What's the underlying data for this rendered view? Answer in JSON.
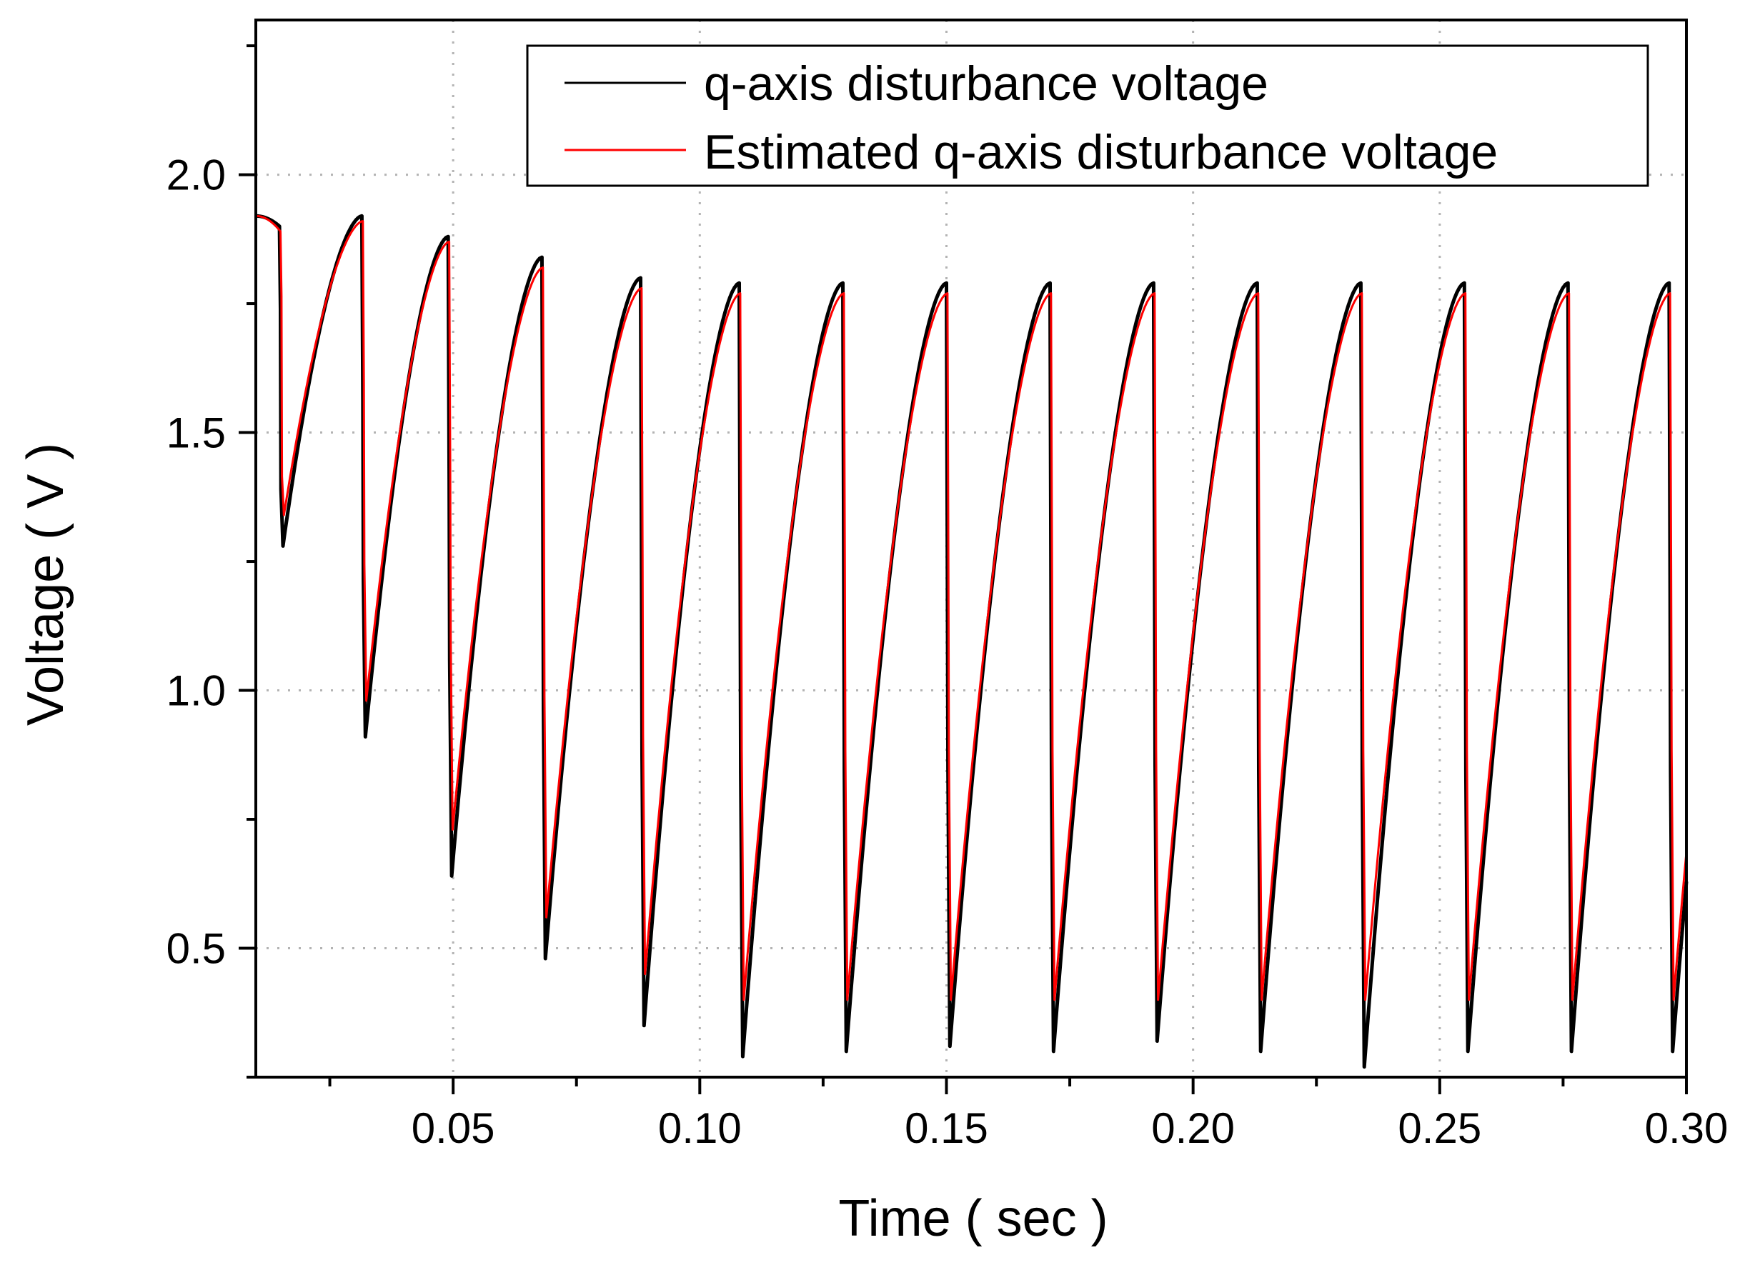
{
  "chart_data": {
    "type": "line",
    "title": "",
    "xlabel": "Time ( sec )",
    "ylabel": "Voltage ( V )",
    "xlim": [
      0.01,
      0.3
    ],
    "ylim": [
      0.25,
      2.3
    ],
    "x_ticks": [
      0.05,
      0.1,
      0.15,
      0.2,
      0.25,
      0.3
    ],
    "x_tick_labels": [
      "0.05",
      "0.10",
      "0.15",
      "0.20",
      "0.25",
      "0.30"
    ],
    "x_minor_ticks": [
      0.025,
      0.075,
      0.125,
      0.175,
      0.225,
      0.275
    ],
    "y_ticks": [
      0.5,
      1.0,
      1.5,
      2.0
    ],
    "y_tick_labels": [
      "0.5",
      "1.0",
      "1.5",
      "2.0"
    ],
    "y_minor_ticks": [
      0.25,
      0.75,
      1.25,
      1.75,
      2.25
    ],
    "grid": true,
    "legend_position": "top-right",
    "series": [
      {
        "name": "q-axis disturbance voltage",
        "color": "#000000",
        "x_start": 0.01,
        "initial_value": 1.92,
        "cycles": [
          {
            "drop_time": 0.0148,
            "peak": 1.9,
            "min": 1.28
          },
          {
            "drop_time": 0.0315,
            "peak": 1.92,
            "min": 0.91
          },
          {
            "drop_time": 0.049,
            "peak": 1.88,
            "min": 0.64
          },
          {
            "drop_time": 0.068,
            "peak": 1.84,
            "min": 0.48
          },
          {
            "drop_time": 0.088,
            "peak": 1.8,
            "min": 0.35
          },
          {
            "drop_time": 0.108,
            "peak": 1.79,
            "min": 0.29
          },
          {
            "drop_time": 0.129,
            "peak": 1.79,
            "min": 0.3
          },
          {
            "drop_time": 0.15,
            "peak": 1.79,
            "min": 0.31
          },
          {
            "drop_time": 0.171,
            "peak": 1.79,
            "min": 0.3
          },
          {
            "drop_time": 0.192,
            "peak": 1.79,
            "min": 0.32
          },
          {
            "drop_time": 0.213,
            "peak": 1.79,
            "min": 0.3
          },
          {
            "drop_time": 0.234,
            "peak": 1.79,
            "min": 0.27
          },
          {
            "drop_time": 0.255,
            "peak": 1.79,
            "min": 0.3
          },
          {
            "drop_time": 0.276,
            "peak": 1.79,
            "min": 0.3
          },
          {
            "drop_time": 0.2965,
            "peak": 1.79,
            "min": 0.3
          }
        ]
      },
      {
        "name": "Estimated q-axis disturbance voltage",
        "color": "#ff0000",
        "x_start": 0.01,
        "initial_value": 1.92,
        "cycles": [
          {
            "drop_time": 0.015,
            "peak": 1.89,
            "min": 1.34
          },
          {
            "drop_time": 0.0317,
            "peak": 1.91,
            "min": 0.98
          },
          {
            "drop_time": 0.0492,
            "peak": 1.87,
            "min": 0.73
          },
          {
            "drop_time": 0.0682,
            "peak": 1.82,
            "min": 0.56
          },
          {
            "drop_time": 0.0882,
            "peak": 1.78,
            "min": 0.45
          },
          {
            "drop_time": 0.1082,
            "peak": 1.77,
            "min": 0.4
          },
          {
            "drop_time": 0.1292,
            "peak": 1.77,
            "min": 0.4
          },
          {
            "drop_time": 0.1502,
            "peak": 1.77,
            "min": 0.4
          },
          {
            "drop_time": 0.1712,
            "peak": 1.77,
            "min": 0.4
          },
          {
            "drop_time": 0.1922,
            "peak": 1.77,
            "min": 0.4
          },
          {
            "drop_time": 0.2132,
            "peak": 1.77,
            "min": 0.4
          },
          {
            "drop_time": 0.2342,
            "peak": 1.77,
            "min": 0.4
          },
          {
            "drop_time": 0.2552,
            "peak": 1.77,
            "min": 0.4
          },
          {
            "drop_time": 0.2762,
            "peak": 1.77,
            "min": 0.4
          },
          {
            "drop_time": 0.2967,
            "peak": 1.77,
            "min": 0.4
          }
        ]
      }
    ]
  }
}
